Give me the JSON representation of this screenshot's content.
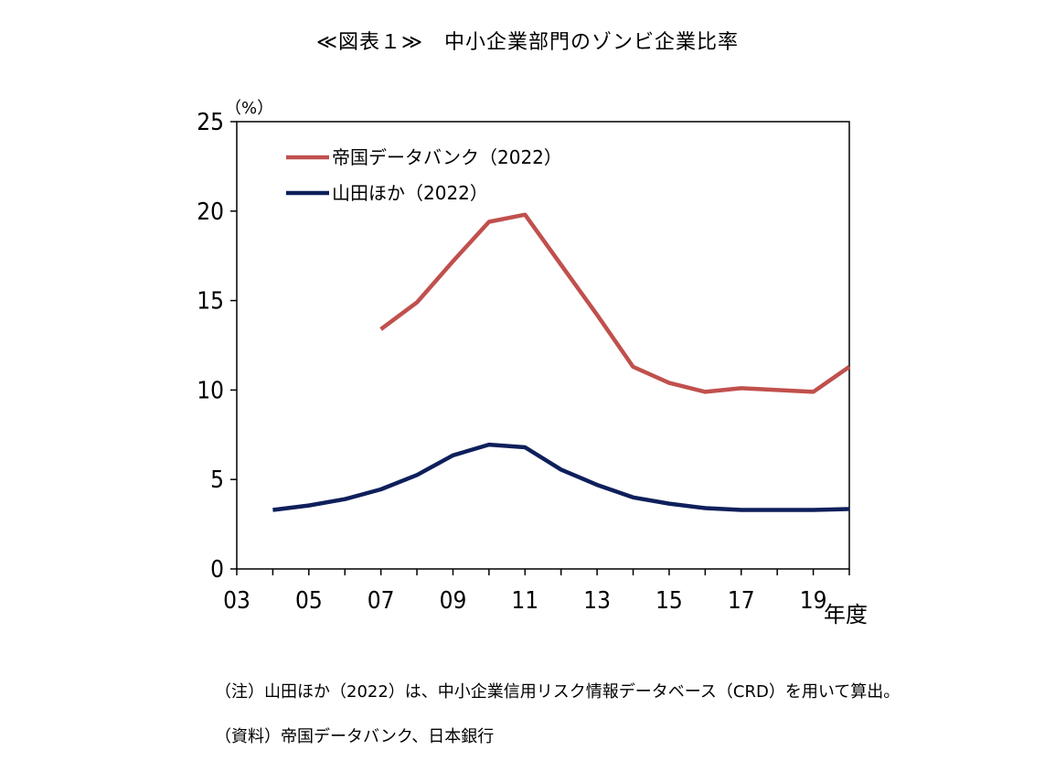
{
  "title": "≪図表１≫　中小企業部門のゾンビ企業比率",
  "notes": {
    "note": "（注）山田ほか（2022）は、中小企業信用リスク情報データベース（CRD）を用いて算出。",
    "source": "（資料）帝国データバンク、日本銀行"
  },
  "chart_data": {
    "type": "line",
    "title": "≪図表１≫　中小企業部門のゾンビ企業比率",
    "ylabel": "（%）",
    "xlabel": "年度",
    "ylim": [
      0,
      25
    ],
    "yticks": [
      "0",
      "5",
      "10",
      "15",
      "20",
      "25"
    ],
    "xlim": [
      2003,
      2020
    ],
    "xticks": [
      "03",
      "05",
      "07",
      "09",
      "11",
      "13",
      "15",
      "17",
      "19"
    ],
    "grid": false,
    "legend_position": "top-left",
    "series": [
      {
        "name": "帝国データバンク（2022）",
        "color": "#c0504d",
        "x": [
          2007,
          2008,
          2009,
          2010,
          2011,
          2012,
          2013,
          2014,
          2015,
          2016,
          2017,
          2018,
          2019,
          2020
        ],
        "values": [
          13.4,
          14.9,
          17.2,
          19.4,
          19.8,
          17.0,
          14.2,
          11.3,
          10.4,
          9.9,
          10.1,
          10.0,
          9.9,
          11.3
        ]
      },
      {
        "name": "山田ほか（2022）",
        "color": "#0e1f5b",
        "x": [
          2004,
          2005,
          2006,
          2007,
          2008,
          2009,
          2010,
          2011,
          2012,
          2013,
          2014,
          2015,
          2016,
          2017,
          2018,
          2019,
          2020
        ],
        "values": [
          3.3,
          3.55,
          3.9,
          4.45,
          5.25,
          6.35,
          6.95,
          6.8,
          5.55,
          4.7,
          4.0,
          3.65,
          3.4,
          3.3,
          3.3,
          3.3,
          3.35
        ]
      }
    ]
  }
}
